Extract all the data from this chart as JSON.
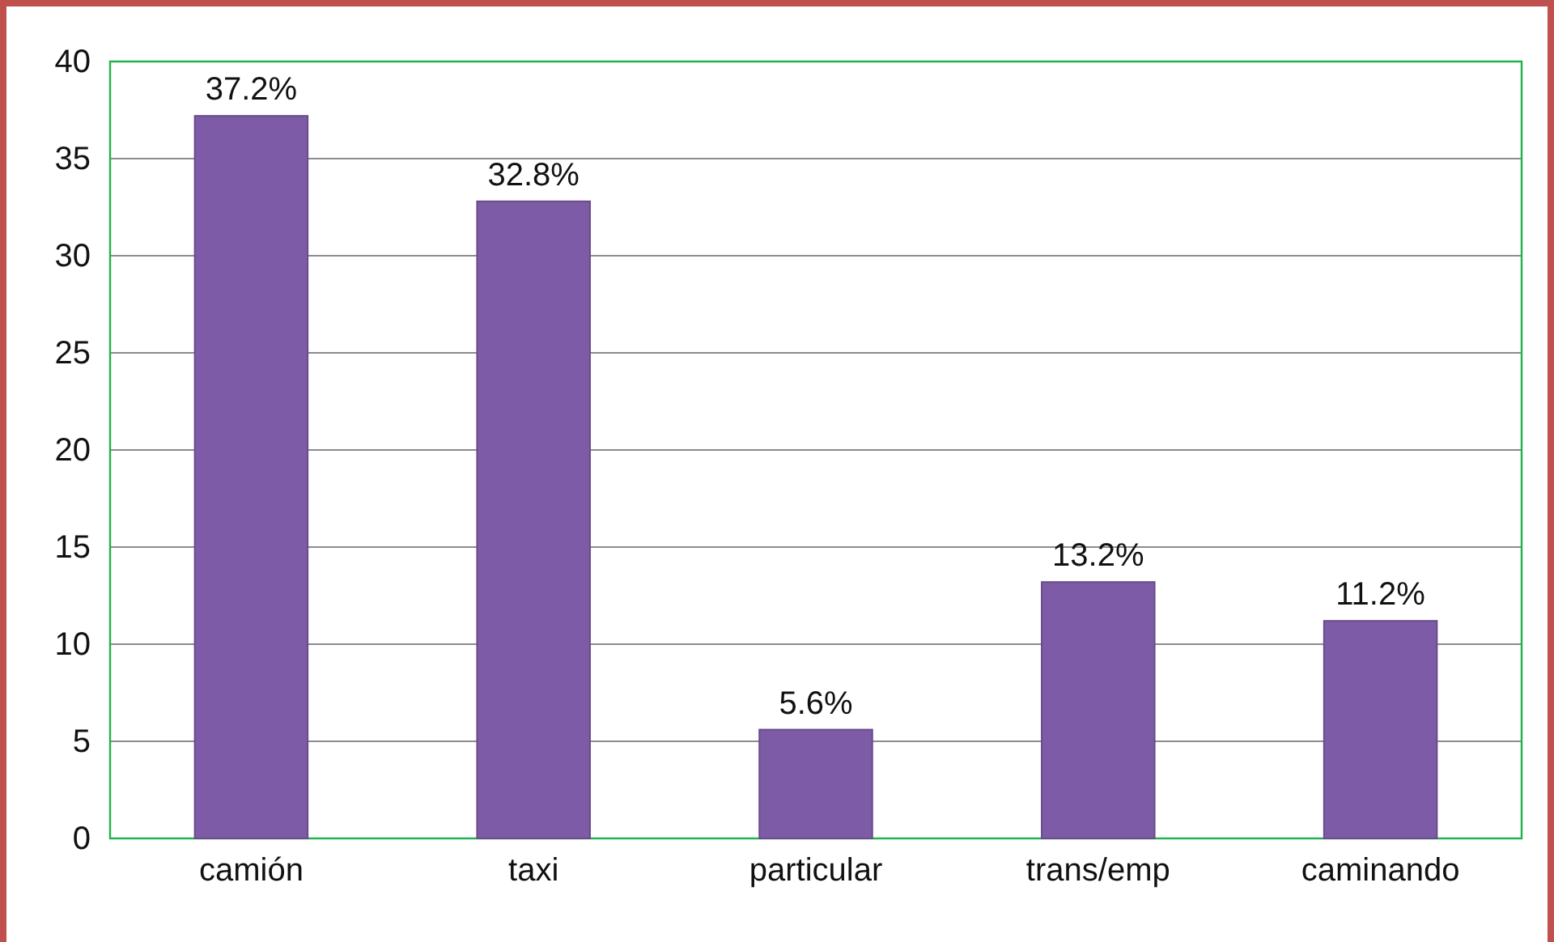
{
  "chart_data": {
    "type": "bar",
    "categories": [
      "camión",
      "taxi",
      "particular",
      "trans/emp",
      "caminando"
    ],
    "values": [
      37.2,
      32.8,
      5.6,
      13.2,
      11.2
    ],
    "value_labels": [
      "37.2%",
      "32.8%",
      "5.6%",
      "13.2%",
      "11.2%"
    ],
    "color": "#7d5ba6",
    "ylim": [
      0,
      40
    ],
    "yticks": [
      0,
      5,
      10,
      15,
      20,
      25,
      30,
      35,
      40
    ],
    "grid": "y"
  }
}
